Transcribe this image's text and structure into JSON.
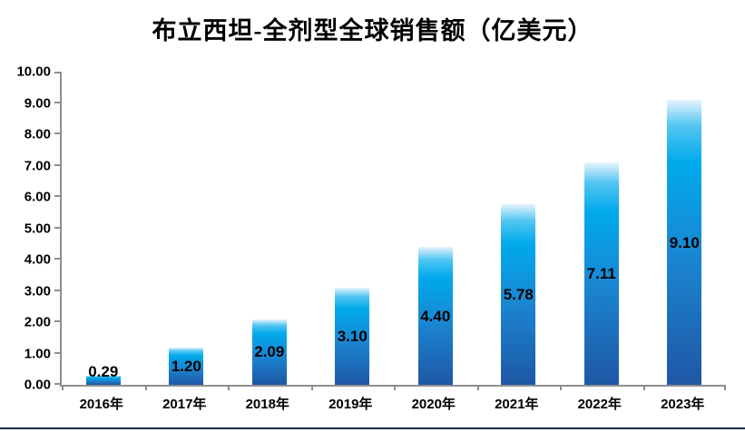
{
  "chart_data": {
    "type": "bar",
    "title": "布立西坦-全剂型全球销售额（亿美元）",
    "categories": [
      "2016年",
      "2017年",
      "2018年",
      "2019年",
      "2020年",
      "2021年",
      "2022年",
      "2023年"
    ],
    "values": [
      0.29,
      1.2,
      2.09,
      3.1,
      4.4,
      5.78,
      7.11,
      9.1
    ],
    "value_labels": [
      "0.29",
      "1.20",
      "2.09",
      "3.10",
      "4.40",
      "5.78",
      "7.11",
      "9.10"
    ],
    "value_label_position": "center-of-bar",
    "xlabel": "",
    "ylabel": "",
    "ylim": [
      0,
      10
    ],
    "y_tick_step": 1,
    "y_tick_labels": [
      "0.00",
      "1.00",
      "2.00",
      "3.00",
      "4.00",
      "5.00",
      "6.00",
      "7.00",
      "8.00",
      "9.00",
      "10.00"
    ],
    "grid": false,
    "legend": "none",
    "colors": {
      "bar_gradient_top_to_bottom": [
        "#e8f4fc",
        "#54c6f2",
        "#00aaec",
        "#1a86d2",
        "#1f57a4"
      ],
      "axis_line": "#8f8f8f",
      "text": "#000000",
      "bottom_rule": "#1c2b4a"
    }
  }
}
